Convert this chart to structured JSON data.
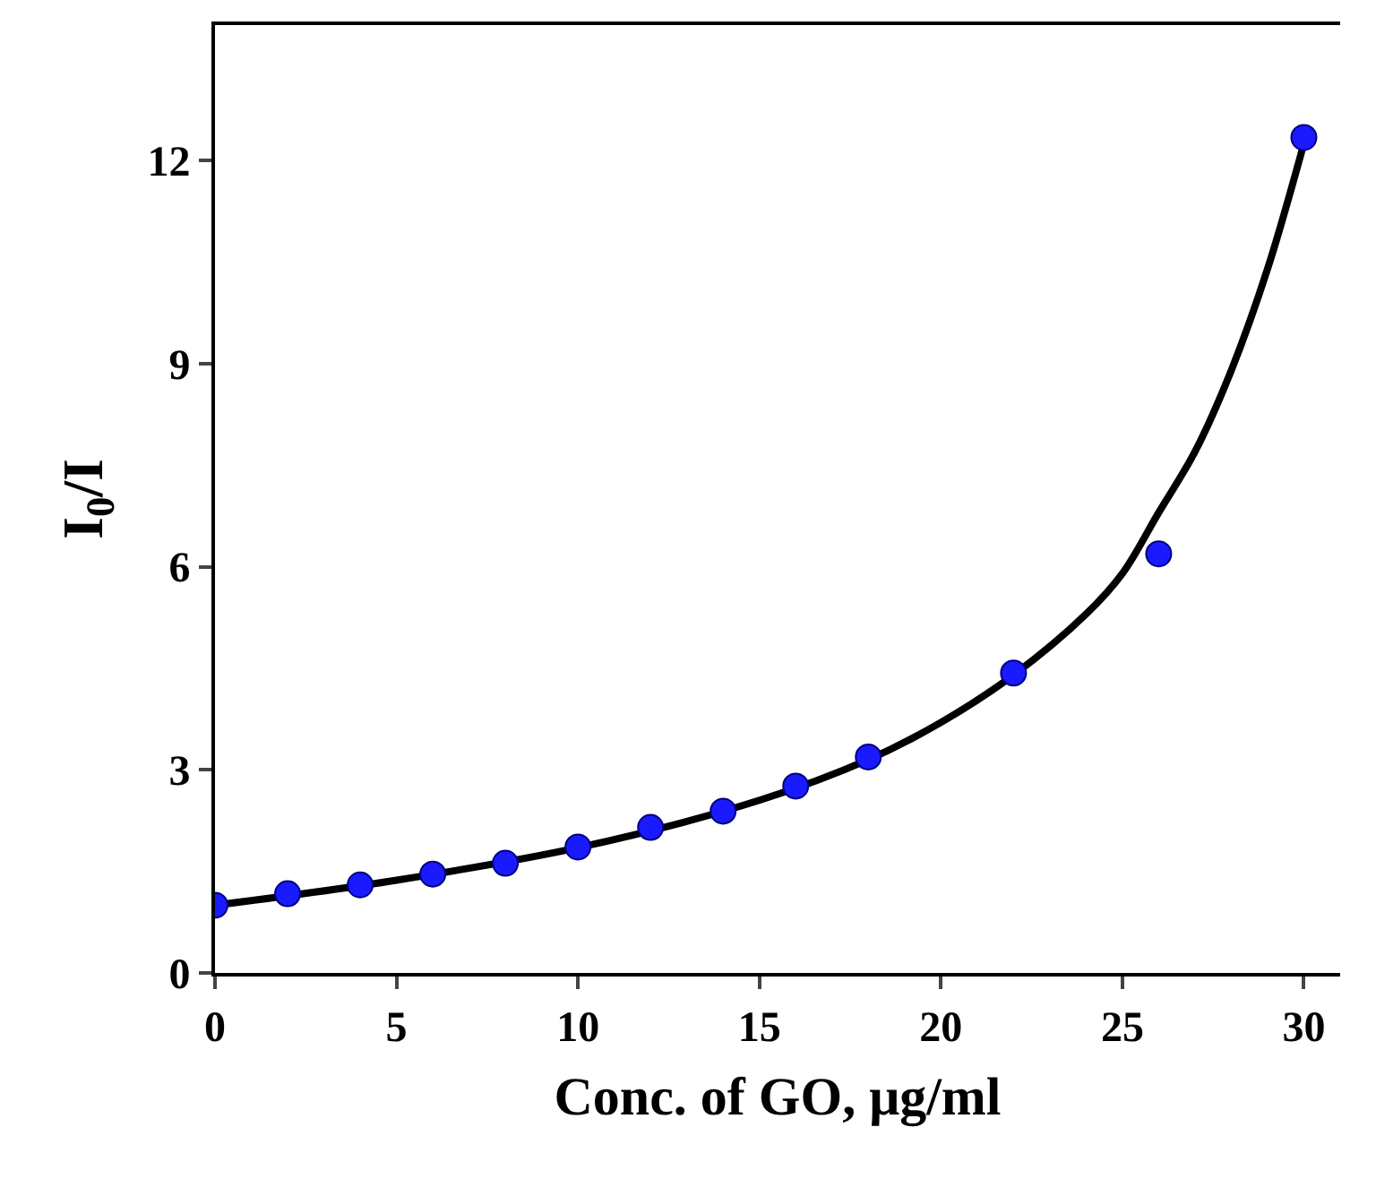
{
  "chart_data": {
    "type": "scatter",
    "xlabel": "Conc. of GO, μg/ml",
    "ylabel": "I$_{0}$/I",
    "xlim": [
      0,
      31
    ],
    "ylim": [
      0,
      14
    ],
    "xticks": [
      0,
      5,
      10,
      15,
      20,
      25,
      30
    ],
    "yticks": [
      0,
      3,
      6,
      9,
      12
    ],
    "series": [
      {
        "type": "line",
        "color": "#000000",
        "marker": "none",
        "line_style": "solid",
        "x": [
          0,
          5,
          10,
          15,
          18,
          20,
          22,
          24,
          25,
          26,
          27,
          28,
          29,
          30
        ],
        "values": [
          1.0,
          1.37,
          1.85,
          2.55,
          3.15,
          3.7,
          4.4,
          5.3,
          5.9,
          6.8,
          7.7,
          8.9,
          10.4,
          12.25
        ]
      },
      {
        "type": "scatter",
        "color": "#1a1aff",
        "marker": "circle",
        "x": [
          0,
          2,
          4,
          6,
          8,
          10,
          12,
          14,
          16,
          18,
          22,
          26,
          30
        ],
        "values": [
          1.0,
          1.17,
          1.3,
          1.46,
          1.62,
          1.86,
          2.15,
          2.39,
          2.76,
          3.19,
          4.43,
          6.19,
          12.34
        ]
      }
    ]
  }
}
